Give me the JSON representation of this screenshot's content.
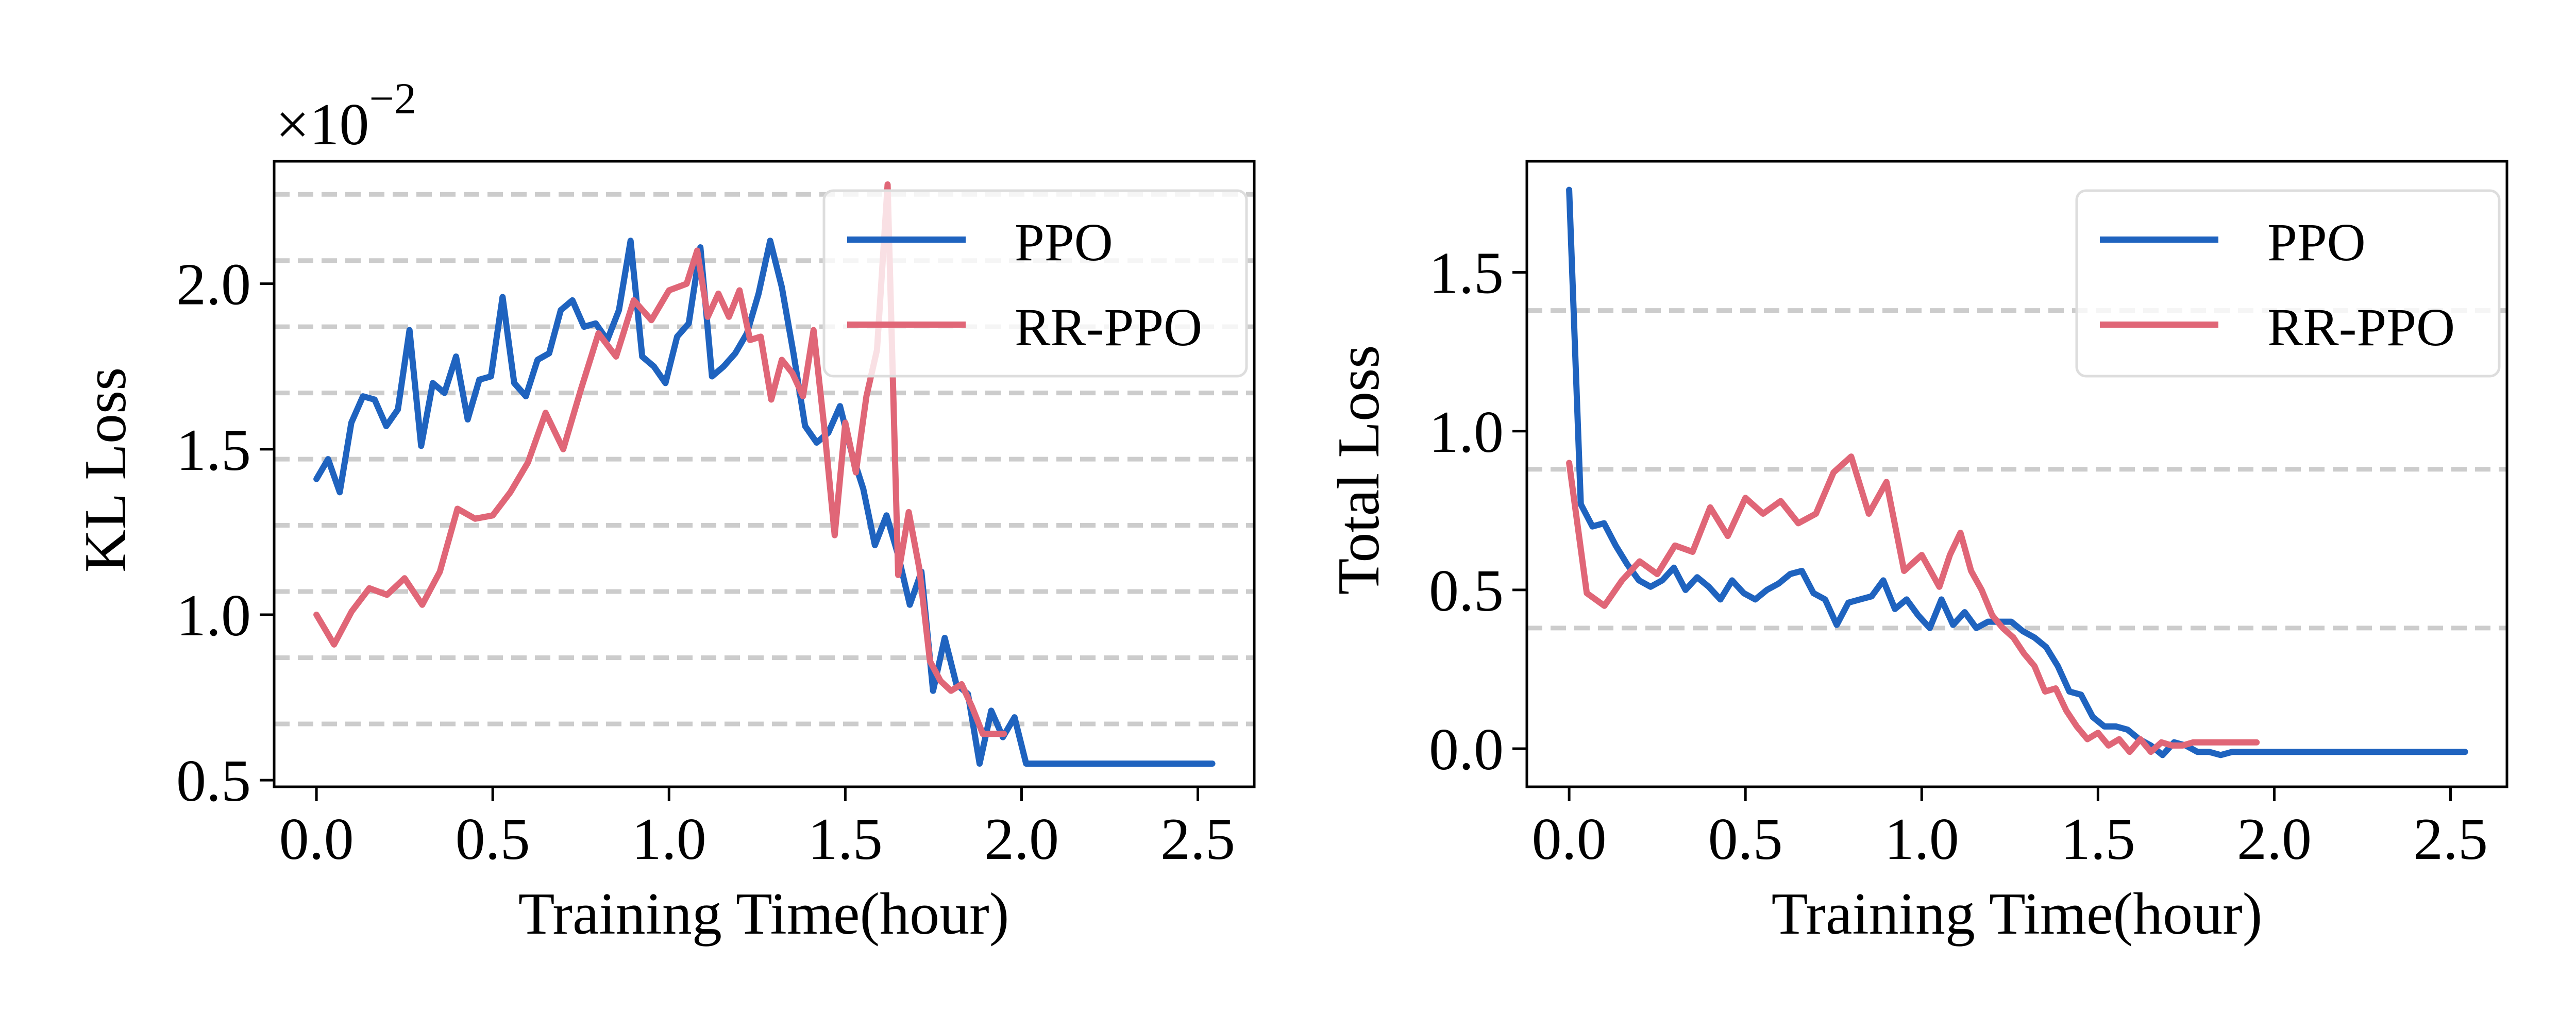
{
  "chart_data": [
    {
      "type": "line",
      "multiplier_label": "×10",
      "multiplier_exponent": "−2",
      "xlabel": "Training Time(hour)",
      "ylabel": "KL Loss",
      "xlim": [
        -0.12,
        2.66
      ],
      "ylim": [
        0.48,
        2.37
      ],
      "xticks": [
        0.0,
        0.5,
        1.0,
        1.5,
        2.0,
        2.5
      ],
      "xtick_labels": [
        "0.0",
        "0.5",
        "1.0",
        "1.5",
        "2.0",
        "2.5"
      ],
      "yticks": [
        0.5,
        1.0,
        1.5,
        2.0
      ],
      "ytick_labels": [
        "0.5",
        "1.0",
        "1.5",
        "2.0"
      ],
      "hgrid": [
        0.67,
        0.87,
        1.07,
        1.27,
        1.47,
        1.67,
        1.87,
        2.07,
        2.27
      ],
      "legend_position": "top-right",
      "series": [
        {
          "name": "PPO",
          "color": "#1f63bf",
          "x": [
            0.0,
            0.033,
            0.066,
            0.099,
            0.132,
            0.165,
            0.198,
            0.231,
            0.264,
            0.297,
            0.33,
            0.363,
            0.396,
            0.429,
            0.462,
            0.495,
            0.528,
            0.561,
            0.594,
            0.627,
            0.66,
            0.693,
            0.726,
            0.759,
            0.792,
            0.825,
            0.858,
            0.891,
            0.924,
            0.957,
            0.99,
            1.023,
            1.056,
            1.089,
            1.122,
            1.155,
            1.188,
            1.221,
            1.254,
            1.287,
            1.32,
            1.353,
            1.386,
            1.419,
            1.452,
            1.485,
            1.518,
            1.551,
            1.584,
            1.617,
            1.65,
            1.683,
            1.716,
            1.749,
            1.782,
            1.815,
            1.848,
            1.881,
            1.914,
            1.947,
            1.98,
            2.013,
            2.046,
            2.079,
            2.112,
            2.145,
            2.178,
            2.211,
            2.244,
            2.277,
            2.31,
            2.343,
            2.376,
            2.409,
            2.442,
            2.475,
            2.508,
            2.541
          ],
          "values": [
            1.41,
            1.47,
            1.37,
            1.58,
            1.66,
            1.65,
            1.57,
            1.62,
            1.86,
            1.51,
            1.7,
            1.67,
            1.78,
            1.59,
            1.71,
            1.72,
            1.96,
            1.7,
            1.66,
            1.77,
            1.79,
            1.92,
            1.95,
            1.87,
            1.88,
            1.83,
            1.92,
            2.13,
            1.78,
            1.75,
            1.7,
            1.84,
            1.88,
            2.11,
            1.72,
            1.75,
            1.79,
            1.85,
            1.97,
            2.13,
            1.99,
            1.79,
            1.57,
            1.52,
            1.55,
            1.63,
            1.49,
            1.38,
            1.21,
            1.3,
            1.18,
            1.03,
            1.13,
            0.77,
            0.93,
            0.79,
            0.76,
            0.55,
            0.71,
            0.63,
            0.69,
            0.55,
            0.55,
            0.55,
            0.55,
            0.55,
            0.55,
            0.55,
            0.55,
            0.55,
            0.55,
            0.55,
            0.55,
            0.55,
            0.55,
            0.55,
            0.55,
            0.55
          ]
        },
        {
          "name": "RR-PPO",
          "color": "#e06677",
          "x": [
            0.0,
            0.05,
            0.1,
            0.15,
            0.2,
            0.25,
            0.3,
            0.35,
            0.4,
            0.45,
            0.5,
            0.55,
            0.6,
            0.65,
            0.7,
            0.75,
            0.8,
            0.85,
            0.9,
            0.95,
            1.0,
            1.05,
            1.08,
            1.11,
            1.14,
            1.17,
            1.2,
            1.23,
            1.26,
            1.29,
            1.32,
            1.35,
            1.38,
            1.41,
            1.44,
            1.47,
            1.5,
            1.53,
            1.56,
            1.59,
            1.62,
            1.65,
            1.68,
            1.71,
            1.74,
            1.77,
            1.8,
            1.83,
            1.86,
            1.89,
            1.92,
            1.95
          ],
          "values": [
            1.0,
            0.91,
            1.01,
            1.08,
            1.06,
            1.11,
            1.03,
            1.13,
            1.32,
            1.29,
            1.3,
            1.37,
            1.46,
            1.61,
            1.5,
            1.68,
            1.85,
            1.78,
            1.95,
            1.89,
            1.98,
            2.0,
            2.1,
            1.9,
            1.97,
            1.9,
            1.98,
            1.83,
            1.84,
            1.65,
            1.77,
            1.73,
            1.66,
            1.86,
            1.57,
            1.24,
            1.58,
            1.43,
            1.66,
            1.8,
            2.3,
            1.12,
            1.31,
            1.14,
            0.86,
            0.8,
            0.77,
            0.79,
            0.72,
            0.64,
            0.64,
            0.64
          ]
        }
      ]
    },
    {
      "type": "line",
      "xlabel": "Training Time(hour)",
      "ylabel": "Total Loss",
      "xlim": [
        -0.12,
        2.66
      ],
      "ylim": [
        -0.12,
        1.85
      ],
      "xticks": [
        0.0,
        0.5,
        1.0,
        1.5,
        2.0,
        2.5
      ],
      "xtick_labels": [
        "0.0",
        "0.5",
        "1.0",
        "1.5",
        "2.0",
        "2.5"
      ],
      "yticks": [
        0.0,
        0.5,
        1.0,
        1.5
      ],
      "ytick_labels": [
        "0.0",
        "0.5",
        "1.0",
        "1.5"
      ],
      "hgrid": [
        0.38,
        0.88,
        1.38
      ],
      "legend_position": "top-right",
      "series": [
        {
          "name": "PPO",
          "color": "#1f63bf",
          "x": [
            0.0,
            0.033,
            0.066,
            0.099,
            0.132,
            0.165,
            0.198,
            0.231,
            0.264,
            0.297,
            0.33,
            0.363,
            0.396,
            0.429,
            0.462,
            0.495,
            0.528,
            0.561,
            0.594,
            0.627,
            0.66,
            0.693,
            0.726,
            0.759,
            0.792,
            0.825,
            0.858,
            0.891,
            0.924,
            0.957,
            0.99,
            1.023,
            1.056,
            1.089,
            1.122,
            1.155,
            1.188,
            1.221,
            1.254,
            1.287,
            1.32,
            1.353,
            1.386,
            1.419,
            1.452,
            1.485,
            1.518,
            1.551,
            1.584,
            1.617,
            1.65,
            1.683,
            1.716,
            1.749,
            1.782,
            1.815,
            1.848,
            1.881,
            1.914,
            1.947,
            1.98,
            2.013,
            2.046,
            2.079,
            2.112,
            2.145,
            2.178,
            2.211,
            2.244,
            2.277,
            2.31,
            2.343,
            2.376,
            2.409,
            2.442,
            2.475,
            2.508,
            2.541
          ],
          "values": [
            1.76,
            0.77,
            0.7,
            0.71,
            0.64,
            0.58,
            0.53,
            0.51,
            0.53,
            0.57,
            0.5,
            0.54,
            0.51,
            0.47,
            0.53,
            0.49,
            0.47,
            0.5,
            0.52,
            0.55,
            0.56,
            0.49,
            0.47,
            0.39,
            0.46,
            0.47,
            0.48,
            0.53,
            0.44,
            0.47,
            0.42,
            0.38,
            0.47,
            0.39,
            0.43,
            0.38,
            0.4,
            0.4,
            0.4,
            0.37,
            0.35,
            0.32,
            0.26,
            0.18,
            0.17,
            0.1,
            0.07,
            0.07,
            0.06,
            0.03,
            0.01,
            -0.02,
            0.02,
            0.01,
            -0.01,
            -0.01,
            -0.02,
            -0.01,
            -0.01,
            -0.01,
            -0.01,
            -0.01,
            -0.01,
            -0.01,
            -0.01,
            -0.01,
            -0.01,
            -0.01,
            -0.01,
            -0.01,
            -0.01,
            -0.01,
            -0.01,
            -0.01,
            -0.01,
            -0.01,
            -0.01,
            -0.01
          ]
        },
        {
          "name": "RR-PPO",
          "color": "#e06677",
          "x": [
            0.0,
            0.05,
            0.1,
            0.15,
            0.2,
            0.25,
            0.3,
            0.35,
            0.4,
            0.45,
            0.5,
            0.55,
            0.6,
            0.65,
            0.7,
            0.75,
            0.8,
            0.85,
            0.9,
            0.95,
            1.0,
            1.05,
            1.08,
            1.11,
            1.14,
            1.17,
            1.2,
            1.23,
            1.26,
            1.29,
            1.32,
            1.35,
            1.38,
            1.41,
            1.44,
            1.47,
            1.5,
            1.53,
            1.56,
            1.59,
            1.62,
            1.65,
            1.68,
            1.71,
            1.74,
            1.77,
            1.8,
            1.83,
            1.86,
            1.89,
            1.92,
            1.95
          ],
          "values": [
            0.9,
            0.49,
            0.45,
            0.53,
            0.59,
            0.55,
            0.64,
            0.62,
            0.76,
            0.67,
            0.79,
            0.74,
            0.78,
            0.71,
            0.74,
            0.87,
            0.92,
            0.74,
            0.84,
            0.56,
            0.61,
            0.51,
            0.61,
            0.68,
            0.56,
            0.5,
            0.42,
            0.38,
            0.35,
            0.3,
            0.26,
            0.18,
            0.19,
            0.12,
            0.07,
            0.03,
            0.05,
            0.01,
            0.03,
            -0.01,
            0.03,
            -0.01,
            0.02,
            0.01,
            0.01,
            0.02,
            0.02,
            0.02,
            0.02,
            0.02,
            0.02,
            0.02
          ]
        }
      ]
    }
  ]
}
